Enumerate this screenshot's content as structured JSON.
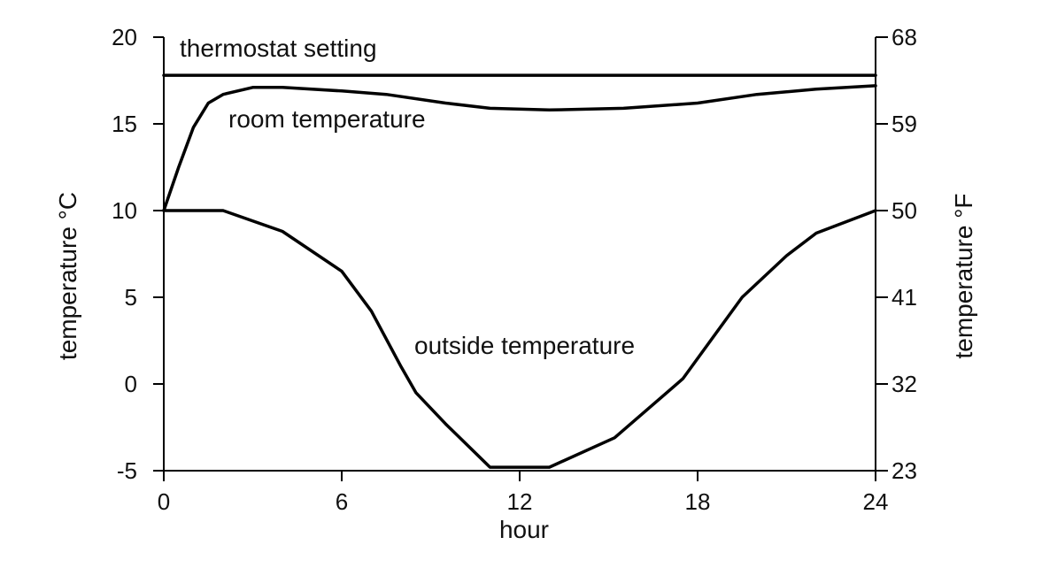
{
  "chart_data": {
    "type": "line",
    "xlabel": "hour",
    "ylabel_left": "temperature °C",
    "ylabel_right": "temperature °F",
    "xlim": [
      0,
      24
    ],
    "ylim": [
      -5,
      20
    ],
    "x_ticks": [
      0,
      6,
      12,
      18,
      24
    ],
    "y_ticks_left": [
      20,
      15,
      10,
      5,
      0,
      -5
    ],
    "y_ticks_right": [
      {
        "c": 20,
        "label": "68"
      },
      {
        "c": 15,
        "label": "59"
      },
      {
        "c": 10,
        "label": "50"
      },
      {
        "c": 5,
        "label": "41"
      },
      {
        "c": 0,
        "label": "32"
      },
      {
        "c": -5,
        "label": "23"
      }
    ],
    "grid": false,
    "series": [
      {
        "name": "thermostat setting",
        "x": [
          0,
          24
        ],
        "y": [
          17.8,
          17.8
        ]
      },
      {
        "name": "room temperature",
        "x": [
          0,
          0.5,
          1,
          1.5,
          2,
          3,
          4,
          6,
          7.5,
          9.5,
          11,
          13,
          15.5,
          18,
          20,
          22,
          24
        ],
        "y": [
          10,
          12.5,
          14.8,
          16.2,
          16.7,
          17.1,
          17.1,
          16.9,
          16.7,
          16.2,
          15.9,
          15.8,
          15.9,
          16.2,
          16.7,
          17.0,
          17.2
        ]
      },
      {
        "name": "outside temperature",
        "x": [
          0,
          2,
          4,
          6,
          7,
          8,
          8.5,
          9.5,
          11,
          13,
          15.2,
          17.5,
          19.5,
          21,
          22,
          24
        ],
        "y": [
          10,
          10,
          8.8,
          6.5,
          4.2,
          1.0,
          -0.5,
          -2.3,
          -4.8,
          -4.8,
          -3.1,
          0.3,
          5.0,
          7.4,
          8.7,
          10
        ]
      }
    ]
  },
  "annotations": {
    "thermostat": "thermostat setting",
    "room": "room temperature",
    "outside": "outside temperature"
  }
}
